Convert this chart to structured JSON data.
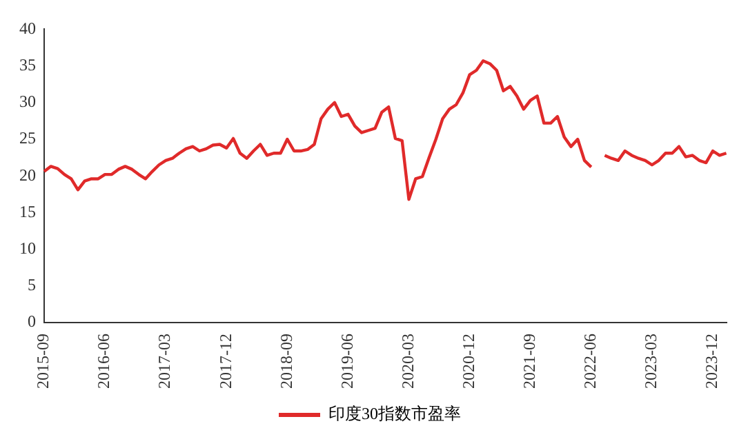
{
  "chart_data": {
    "type": "line",
    "categories": [
      "2015-09",
      null,
      null,
      null,
      null,
      null,
      null,
      null,
      null,
      "2016-06",
      null,
      null,
      null,
      null,
      null,
      null,
      null,
      null,
      "2017-03",
      null,
      null,
      null,
      null,
      null,
      null,
      null,
      null,
      "2017-12",
      null,
      null,
      null,
      null,
      null,
      null,
      null,
      null,
      "2018-09",
      null,
      null,
      null,
      null,
      null,
      null,
      null,
      null,
      "2019-06",
      null,
      null,
      null,
      null,
      null,
      null,
      null,
      null,
      "2020-03",
      null,
      null,
      null,
      null,
      null,
      null,
      null,
      null,
      "2020-12",
      null,
      null,
      null,
      null,
      null,
      null,
      null,
      null,
      "2021-09",
      null,
      null,
      null,
      null,
      null,
      null,
      null,
      null,
      "2022-06",
      null,
      null,
      null,
      null,
      null,
      null,
      null,
      null,
      "2023-03",
      null,
      null,
      null,
      null,
      null,
      null,
      null,
      null,
      "2023-12",
      null,
      null
    ],
    "series": [
      {
        "name": "印度30指数市盈率",
        "color": "#e02a2a",
        "values": [
          20.6,
          21.3,
          21.0,
          20.2,
          19.6,
          18.1,
          19.3,
          19.6,
          19.6,
          20.2,
          20.2,
          20.9,
          21.3,
          20.9,
          20.2,
          19.6,
          20.6,
          21.5,
          22.1,
          22.4,
          23.1,
          23.7,
          24.0,
          23.4,
          23.7,
          24.2,
          24.3,
          23.8,
          25.1,
          23.1,
          22.4,
          23.4,
          24.3,
          22.8,
          23.1,
          23.1,
          25.0,
          23.4,
          23.4,
          23.6,
          24.3,
          27.8,
          29.1,
          30.0,
          28.1,
          28.4,
          26.8,
          25.9,
          26.2,
          26.5,
          28.7,
          29.4,
          25.1,
          24.8,
          16.8,
          19.6,
          19.9,
          22.5,
          25.0,
          27.8,
          29.1,
          29.7,
          31.3,
          33.8,
          34.4,
          35.7,
          35.3,
          34.4,
          31.6,
          32.2,
          30.9,
          29.1,
          30.3,
          30.9,
          27.2,
          27.2,
          28.1,
          25.3,
          24.0,
          25.0,
          22.1,
          21.2,
          null,
          22.8,
          22.4,
          22.1,
          23.4,
          22.8,
          22.4,
          22.1,
          21.5,
          22.1,
          23.1,
          23.1,
          24.0,
          22.6,
          22.8,
          22.1,
          21.8,
          23.4,
          22.8,
          23.1
        ]
      }
    ],
    "ylim": [
      0,
      40
    ],
    "yticks": [
      0,
      5,
      10,
      15,
      20,
      25,
      30,
      35,
      40
    ],
    "grid": false,
    "legend": "bottom",
    "marker": "none",
    "line_style": "solid"
  }
}
